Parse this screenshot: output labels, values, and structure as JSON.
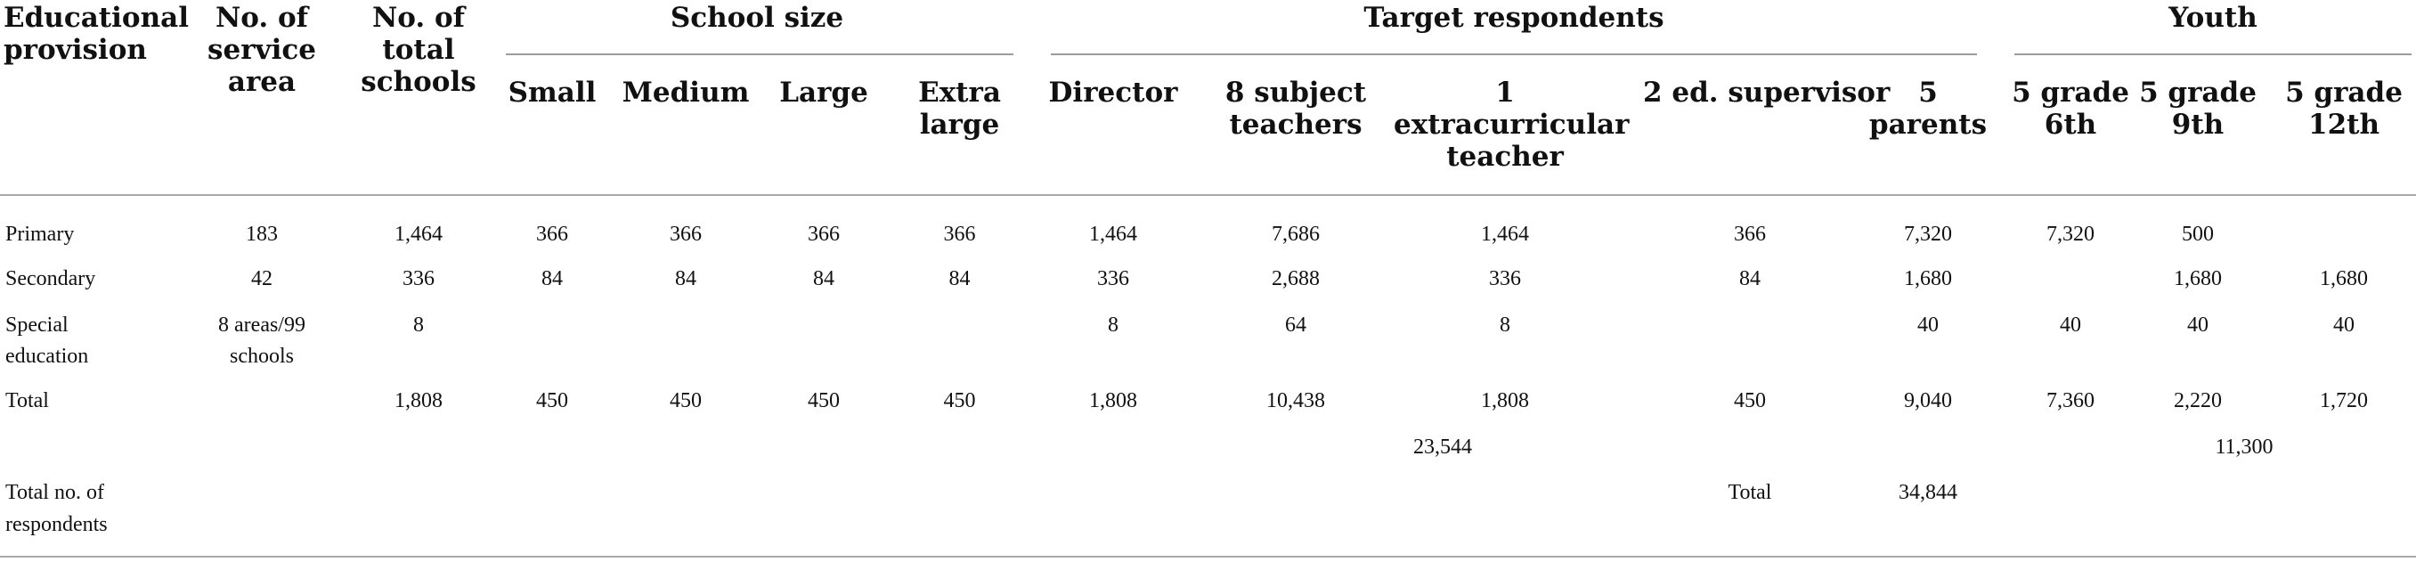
{
  "headers": {
    "educational_provision": "Educational provision",
    "service_area": "No. of service area",
    "total_schools": "No. of total schools",
    "school_size": "School size",
    "small": "Small",
    "medium": "Medium",
    "large": "Large",
    "extra_large": "Extra large",
    "target_respondents": "Target respondents",
    "director": "Director",
    "subject_teachers": "8 subject teachers",
    "extracurricular_teacher": "1 extracurricular teacher",
    "ed_supervisor": "2 ed. supervisor",
    "parents": "5 parents",
    "youth": "Youth",
    "grade6": "5 grade 6th",
    "grade9": "5 grade 9th",
    "grade12": "5 grade 12th"
  },
  "rows": {
    "primary": {
      "label": "Primary",
      "service_area": "183",
      "total_schools": "1,464",
      "small": "366",
      "medium": "366",
      "large": "366",
      "extra_large": "366",
      "director": "1,464",
      "subject_teachers": "7,686",
      "extracurricular": "1,464",
      "supervisor": "366",
      "parents": "7,320",
      "grade6": "7,320",
      "grade9": "500",
      "grade12": ""
    },
    "secondary": {
      "label": "Secondary",
      "service_area": "42",
      "total_schools": "336",
      "small": "84",
      "medium": "84",
      "large": "84",
      "extra_large": "84",
      "director": "336",
      "subject_teachers": "2,688",
      "extracurricular": "336",
      "supervisor": "84",
      "parents": "1,680",
      "grade6": "",
      "grade9": "1,680",
      "grade12": "1,680"
    },
    "special": {
      "label_line1": "Special",
      "label_line2": "education",
      "service_area_line1": "8 areas/99",
      "service_area_line2": "schools",
      "total_schools": "8",
      "director": "8",
      "subject_teachers": "64",
      "extracurricular": "8",
      "parents": "40",
      "grade6": "40",
      "grade9": "40",
      "grade12": "40"
    },
    "total": {
      "label": "Total",
      "total_schools": "1,808",
      "small": "450",
      "medium": "450",
      "large": "450",
      "extra_large": "450",
      "director": "1,808",
      "subject_teachers": "10,438",
      "extracurricular": "1,808",
      "supervisor": "450",
      "parents": "9,040",
      "grade6": "7,360",
      "grade9": "2,220",
      "grade12": "1,720"
    },
    "subtotals": {
      "respondents": "23,544",
      "youth": "11,300"
    },
    "grand_total": {
      "label_line1": "Total no. of",
      "label_line2": "respondents",
      "total_label": "Total",
      "value": "34,844"
    }
  }
}
